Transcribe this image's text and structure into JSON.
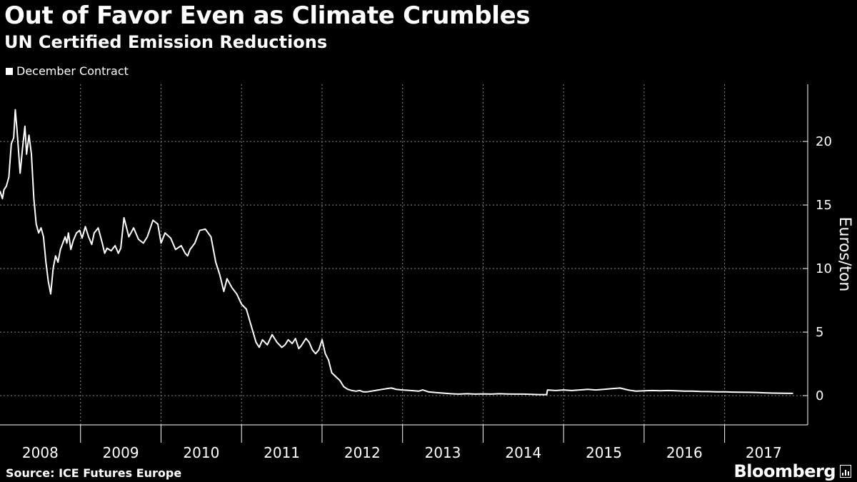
{
  "chart": {
    "title": "Out of Favor Even as Climate Crumbles",
    "subtitle": "UN Certified Emission Reductions",
    "legend_label": "December Contract",
    "source": "Source: ICE Futures Europe",
    "brand": "Bloomberg",
    "line_color": "#ffffff",
    "background_color": "#000000"
  },
  "chart_data": {
    "type": "line",
    "title": "Out of Favor Even as Climate Crumbles",
    "subtitle": "UN Certified Emission Reductions",
    "xlabel": "",
    "ylabel": "Euros/ton",
    "ylim": [
      -2.3,
      24.5
    ],
    "yticks": [
      0,
      5,
      10,
      15,
      20
    ],
    "xlim": [
      2008.0,
      2017.97
    ],
    "xticks": [
      "2008",
      "2009",
      "2010",
      "2011",
      "2012",
      "2013",
      "2014",
      "2015",
      "2016",
      "2017"
    ],
    "grid": true,
    "legend_position": "top-left",
    "y_axis_side": "right",
    "series": [
      {
        "name": "December Contract",
        "x": [
          2008.0,
          2008.03,
          2008.05,
          2008.08,
          2008.11,
          2008.14,
          2008.17,
          2008.19,
          2008.21,
          2008.25,
          2008.28,
          2008.31,
          2008.33,
          2008.36,
          2008.39,
          2008.42,
          2008.45,
          2008.48,
          2008.51,
          2008.54,
          2008.57,
          2008.6,
          2008.63,
          2008.66,
          2008.69,
          2008.72,
          2008.75,
          2008.78,
          2008.81,
          2008.83,
          2008.85,
          2008.88,
          2008.91,
          2008.95,
          2008.99,
          2009.02,
          2009.06,
          2009.1,
          2009.14,
          2009.17,
          2009.22,
          2009.27,
          2009.3,
          2009.33,
          2009.38,
          2009.43,
          2009.47,
          2009.5,
          2009.54,
          2009.6,
          2009.66,
          2009.72,
          2009.78,
          2009.83,
          2009.9,
          2009.96,
          2010.0,
          2010.05,
          2010.12,
          2010.18,
          2010.25,
          2010.3,
          2010.33,
          2010.36,
          2010.42,
          2010.48,
          2010.55,
          2010.62,
          2010.68,
          2010.73,
          2010.78,
          2010.82,
          2010.88,
          2010.94,
          2011.0,
          2011.06,
          2011.12,
          2011.18,
          2011.22,
          2011.26,
          2011.32,
          2011.38,
          2011.44,
          2011.5,
          2011.54,
          2011.58,
          2011.63,
          2011.67,
          2011.71,
          2011.74,
          2011.77,
          2011.8,
          2011.84,
          2011.88,
          2011.92,
          2011.96,
          2012.0,
          2012.04,
          2012.08,
          2012.12,
          2012.17,
          2012.22,
          2012.27,
          2012.32,
          2012.37,
          2012.42,
          2012.47,
          2012.51,
          2012.56,
          2012.61,
          2012.66,
          2012.7,
          2012.75,
          2012.8,
          2012.86,
          2012.92,
          2013.0,
          2013.1,
          2013.2,
          2013.25,
          2013.32,
          2013.4,
          2013.5,
          2013.6,
          2013.7,
          2013.8,
          2013.9,
          2014.0,
          2014.1,
          2014.2,
          2014.3,
          2014.4,
          2014.5,
          2014.6,
          2014.7,
          2014.79,
          2014.8,
          2014.9,
          2015.0,
          2015.1,
          2015.2,
          2015.3,
          2015.4,
          2015.5,
          2015.6,
          2015.7,
          2015.8,
          2015.9,
          2016.0,
          2016.1,
          2016.2,
          2016.3,
          2016.4,
          2016.5,
          2016.6,
          2016.7,
          2016.8,
          2016.9,
          2017.0,
          2017.1,
          2017.2,
          2017.3,
          2017.4,
          2017.5,
          2017.6,
          2017.85
        ],
        "y": [
          16.1,
          15.5,
          16.2,
          16.5,
          17.2,
          19.8,
          20.3,
          22.5,
          21.0,
          17.5,
          19.5,
          21.2,
          19.0,
          20.5,
          19.0,
          15.5,
          13.5,
          12.8,
          13.2,
          12.5,
          10.5,
          9.0,
          8.0,
          10.0,
          11.0,
          10.5,
          11.5,
          12.0,
          12.5,
          12.0,
          12.8,
          11.5,
          12.2,
          12.8,
          13.0,
          12.4,
          13.3,
          12.5,
          11.9,
          12.8,
          13.2,
          12.0,
          11.2,
          11.6,
          11.4,
          11.8,
          11.2,
          11.6,
          14.0,
          12.5,
          13.2,
          12.3,
          12.0,
          12.5,
          13.8,
          13.5,
          12.0,
          12.8,
          12.4,
          11.5,
          11.8,
          11.2,
          11.0,
          11.5,
          12.0,
          13.0,
          13.1,
          12.5,
          10.5,
          9.5,
          8.2,
          9.2,
          8.5,
          8.0,
          7.2,
          6.8,
          5.5,
          4.2,
          3.8,
          4.4,
          4.0,
          4.8,
          4.2,
          3.8,
          4.0,
          4.4,
          4.1,
          4.5,
          3.7,
          3.9,
          4.2,
          4.5,
          4.2,
          3.6,
          3.3,
          3.6,
          4.4,
          3.3,
          2.8,
          1.8,
          1.5,
          1.2,
          0.7,
          0.5,
          0.4,
          0.35,
          0.4,
          0.3,
          0.3,
          0.35,
          0.4,
          0.45,
          0.5,
          0.55,
          0.6,
          0.5,
          0.45,
          0.4,
          0.35,
          0.45,
          0.3,
          0.25,
          0.2,
          0.15,
          0.12,
          0.15,
          0.12,
          0.14,
          0.12,
          0.15,
          0.13,
          0.12,
          0.12,
          0.1,
          0.08,
          0.08,
          0.45,
          0.4,
          0.45,
          0.4,
          0.45,
          0.5,
          0.45,
          0.5,
          0.55,
          0.6,
          0.45,
          0.35,
          0.38,
          0.4,
          0.38,
          0.4,
          0.38,
          0.35,
          0.36,
          0.33,
          0.32,
          0.3,
          0.3,
          0.28,
          0.27,
          0.26,
          0.25,
          0.22,
          0.2,
          0.18
        ]
      }
    ]
  }
}
